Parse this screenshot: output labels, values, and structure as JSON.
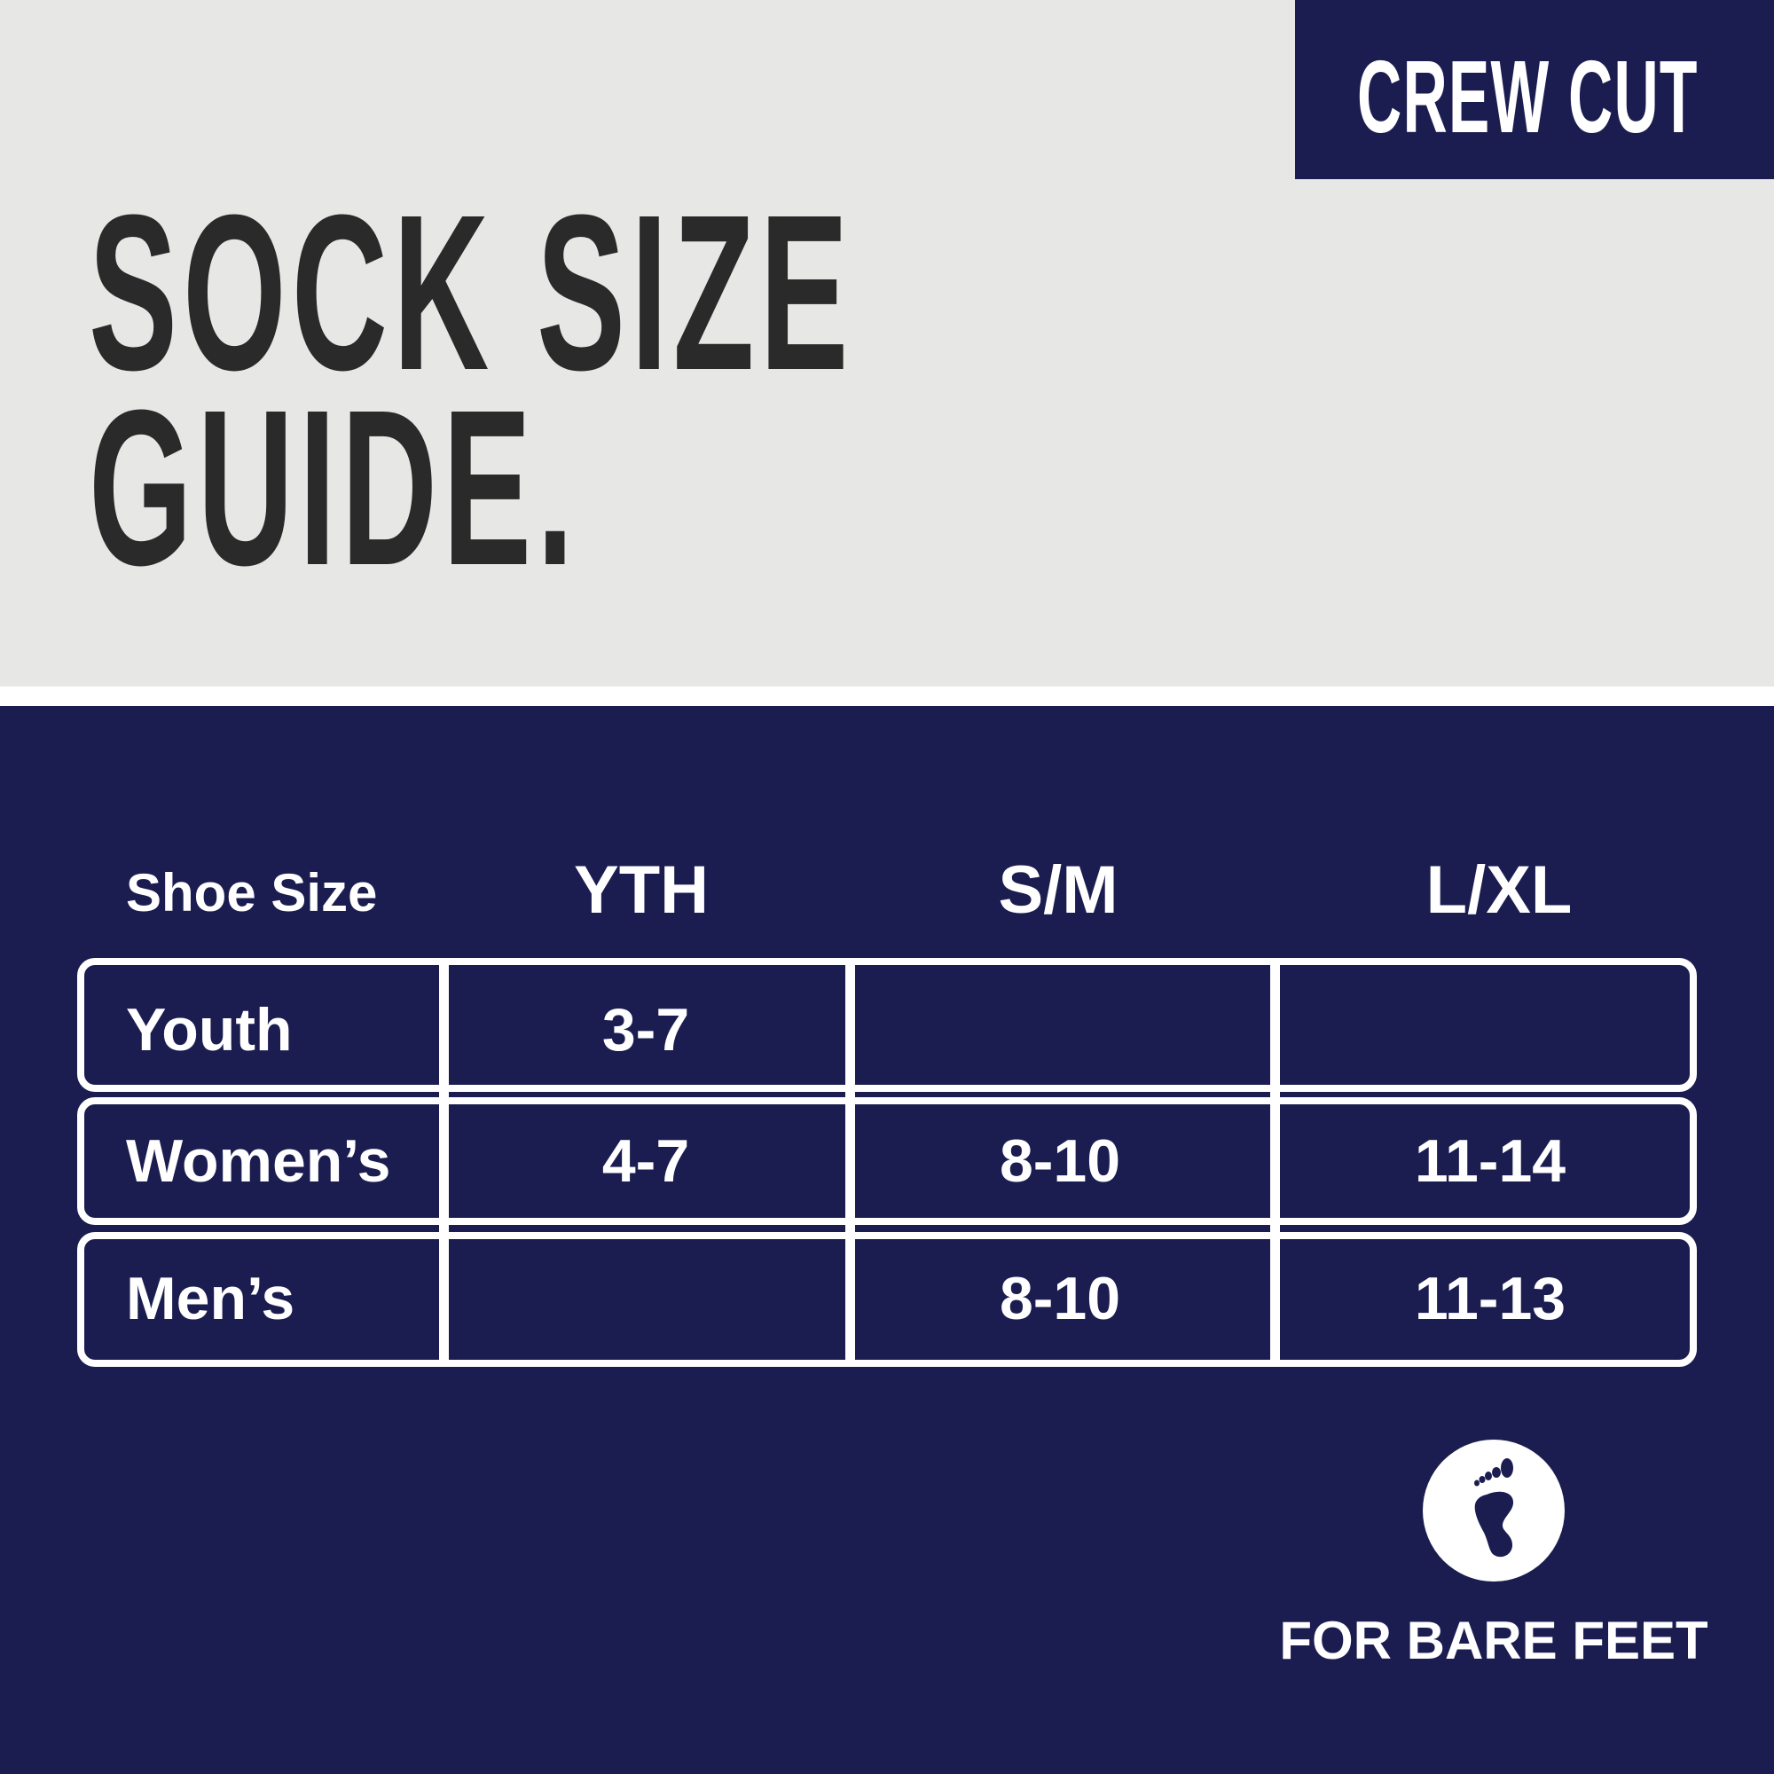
{
  "badge": "CREW CUT",
  "title": {
    "line1": "SOCK SIZE",
    "line2": "GUIDE."
  },
  "table": {
    "corner": "Shoe Size",
    "columns": [
      "YTH",
      "S/M",
      "L/XL"
    ],
    "rows": [
      {
        "label": "Youth",
        "values": [
          "3-7",
          "",
          ""
        ]
      },
      {
        "label": "Women’s",
        "values": [
          "4-7",
          "8-10",
          "11-14"
        ]
      },
      {
        "label": "Men’s",
        "values": [
          "",
          "8-10",
          "11-13"
        ]
      }
    ]
  },
  "footer": {
    "icon": "bare-foot-icon",
    "text": "FOR BARE FEET"
  },
  "colors": {
    "navy": "#1b1d50",
    "gray": "#e7e7e5",
    "title": "#2a2a2a"
  }
}
